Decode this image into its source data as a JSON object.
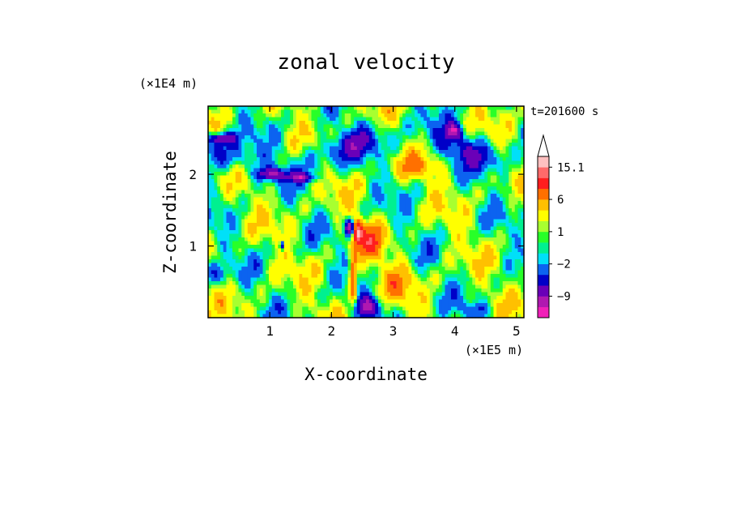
{
  "chart_data": {
    "type": "heatmap",
    "title": "zonal velocity",
    "time_label": "t=201600 s",
    "xlabel": "X-coordinate",
    "ylabel": "Z-coordinate",
    "x_unit": "(×1E5 m)",
    "y_unit": "(×1E4 m)",
    "xlim": [
      0.0,
      5.12
    ],
    "ylim": [
      0.0,
      2.95
    ],
    "x_ticks": [
      1,
      2,
      3,
      4,
      5
    ],
    "y_ticks": [
      1,
      2
    ],
    "x_tick_labels": [
      "1",
      "2",
      "3",
      "4",
      "5"
    ],
    "y_tick_labels": [
      "1",
      "2"
    ],
    "colorbar": {
      "levels": [
        -15.1,
        -12,
        -9,
        -6,
        -4,
        -2,
        -1,
        0,
        1,
        2,
        4,
        6,
        9,
        12,
        15.1
      ],
      "colors": [
        "#f020b8",
        "#b018b0",
        "#6a00b8",
        "#0000c8",
        "#0c63f0",
        "#00e0f8",
        "#00f090",
        "#28ff28",
        "#a8ff30",
        "#ffff00",
        "#ffc000",
        "#ff7000",
        "#ff1e1e",
        "#ff6a6a",
        "#ffc0c0"
      ],
      "labeled_levels": [
        15.1,
        6,
        1,
        -2,
        -9
      ],
      "tick_labels": [
        "15.1",
        "6",
        "1",
        "−2",
        "−9"
      ],
      "extend": "max"
    }
  }
}
